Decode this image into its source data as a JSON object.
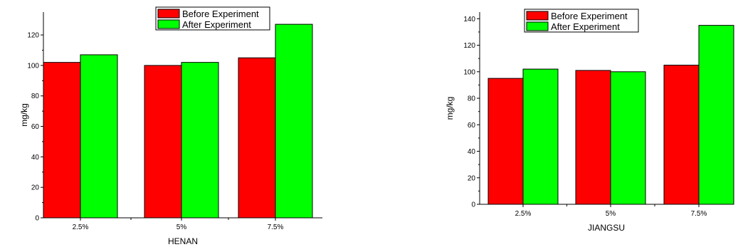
{
  "charts": [
    {
      "type": "bar",
      "categories": [
        "2.5%",
        "5%",
        "7.5%"
      ],
      "series": [
        {
          "name": "Before Experiment",
          "values": [
            102,
            100,
            105
          ]
        },
        {
          "name": "After Experiment",
          "values": [
            107,
            102,
            127
          ]
        }
      ],
      "xlabel": "HENAN",
      "ylabel": "mg/kg",
      "ylim": [
        0,
        135
      ],
      "yticks": [
        0,
        20,
        40,
        60,
        80,
        100,
        120
      ],
      "grid": false,
      "legend": "top-center"
    },
    {
      "type": "bar",
      "categories": [
        "2.5%",
        "5%",
        "7.5%"
      ],
      "series": [
        {
          "name": "Before Experiment",
          "values": [
            95,
            101,
            105
          ]
        },
        {
          "name": "After Experiment",
          "values": [
            102,
            100,
            135
          ]
        }
      ],
      "xlabel": "JIANGSU",
      "ylabel": "mg/kg",
      "ylim": [
        0,
        145
      ],
      "yticks": [
        0,
        20,
        40,
        60,
        80,
        100,
        120,
        140
      ],
      "grid": false,
      "legend": "top-center"
    }
  ],
  "colors": {
    "before": "#ff0000",
    "after": "#00ff00",
    "axis": "#000000"
  }
}
